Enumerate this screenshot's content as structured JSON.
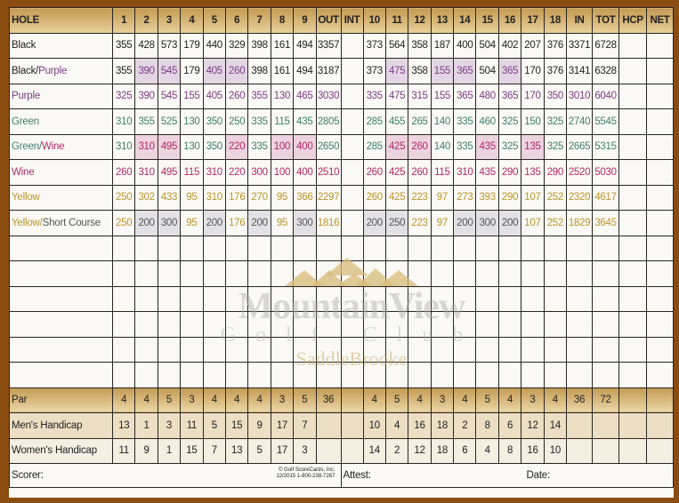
{
  "header": {
    "hole_label": "HOLE",
    "front": [
      "1",
      "2",
      "3",
      "4",
      "5",
      "6",
      "7",
      "8",
      "9"
    ],
    "out": "OUT",
    "int": "INT",
    "back": [
      "10",
      "11",
      "12",
      "13",
      "14",
      "15",
      "16",
      "17",
      "18"
    ],
    "in": "IN",
    "tot": "TOT",
    "hcp": "HCP",
    "net": "NET"
  },
  "colors": {
    "black": "#222222",
    "purple": "#7d3a86",
    "green": "#3d7f6c",
    "wine": "#b02a66",
    "yellow": "#b8952b",
    "short": "#555555",
    "hl_purple": "#e3d6e4",
    "hl_wine": "#ecd3df",
    "hl_grey": "#e2e2e6",
    "border": "#8a4c10"
  },
  "tees": [
    {
      "label_parts": [
        {
          "text": "Black",
          "color": "black"
        }
      ],
      "color": "black",
      "alt": "black",
      "hl": "",
      "alt_cols": [],
      "values": [
        "355",
        "428",
        "573",
        "179",
        "440",
        "329",
        "398",
        "161",
        "494",
        "3357",
        "373",
        "564",
        "358",
        "187",
        "400",
        "504",
        "402",
        "207",
        "376",
        "3371",
        "6728"
      ]
    },
    {
      "label_parts": [
        {
          "text": "Black/",
          "color": "black"
        },
        {
          "text": "Purple",
          "color": "purple"
        }
      ],
      "color": "black",
      "alt": "purple",
      "hl": "hl_purple",
      "alt_cols": [
        1,
        2,
        4,
        5,
        11,
        13,
        14,
        16
      ],
      "values": [
        "355",
        "390",
        "545",
        "179",
        "405",
        "260",
        "398",
        "161",
        "494",
        "3187",
        "373",
        "475",
        "358",
        "155",
        "365",
        "504",
        "365",
        "170",
        "376",
        "3141",
        "6328"
      ]
    },
    {
      "label_parts": [
        {
          "text": "Purple",
          "color": "purple"
        }
      ],
      "color": "purple",
      "alt": "purple",
      "hl": "",
      "alt_cols": [],
      "values": [
        "325",
        "390",
        "545",
        "155",
        "405",
        "260",
        "355",
        "130",
        "465",
        "3030",
        "335",
        "475",
        "315",
        "155",
        "365",
        "480",
        "365",
        "170",
        "350",
        "3010",
        "6040"
      ]
    },
    {
      "label_parts": [
        {
          "text": "Green",
          "color": "green"
        }
      ],
      "color": "green",
      "alt": "green",
      "hl": "",
      "alt_cols": [],
      "values": [
        "310",
        "355",
        "525",
        "130",
        "350",
        "250",
        "335",
        "115",
        "435",
        "2805",
        "285",
        "455",
        "265",
        "140",
        "335",
        "460",
        "325",
        "150",
        "325",
        "2740",
        "5545"
      ]
    },
    {
      "label_parts": [
        {
          "text": "Green/",
          "color": "green"
        },
        {
          "text": "Wine",
          "color": "wine"
        }
      ],
      "color": "green",
      "alt": "wine",
      "hl": "hl_wine",
      "alt_cols": [
        1,
        2,
        5,
        7,
        8,
        11,
        12,
        15,
        17
      ],
      "values": [
        "310",
        "310",
        "495",
        "130",
        "350",
        "220",
        "335",
        "100",
        "400",
        "2650",
        "285",
        "425",
        "260",
        "140",
        "335",
        "435",
        "325",
        "135",
        "325",
        "2665",
        "5315"
      ]
    },
    {
      "label_parts": [
        {
          "text": "Wine",
          "color": "wine"
        }
      ],
      "color": "wine",
      "alt": "wine",
      "hl": "",
      "alt_cols": [],
      "values": [
        "260",
        "310",
        "495",
        "115",
        "310",
        "220",
        "300",
        "100",
        "400",
        "2510",
        "260",
        "425",
        "260",
        "115",
        "310",
        "435",
        "290",
        "135",
        "290",
        "2520",
        "5030"
      ]
    },
    {
      "label_parts": [
        {
          "text": "Yellow",
          "color": "yellow"
        }
      ],
      "color": "yellow",
      "alt": "yellow",
      "hl": "",
      "alt_cols": [],
      "values": [
        "250",
        "302",
        "433",
        "95",
        "310",
        "176",
        "270",
        "95",
        "366",
        "2297",
        "260",
        "425",
        "223",
        "97",
        "273",
        "393",
        "290",
        "107",
        "252",
        "2320",
        "4617"
      ]
    },
    {
      "label_parts": [
        {
          "text": "Yellow/",
          "color": "yellow"
        },
        {
          "text": "Short Course",
          "color": "short"
        }
      ],
      "color": "yellow",
      "alt": "short",
      "hl": "hl_grey",
      "alt_cols": [
        1,
        2,
        4,
        6,
        8,
        10,
        11,
        14,
        15,
        16
      ],
      "values": [
        "250",
        "200",
        "300",
        "95",
        "200",
        "176",
        "200",
        "95",
        "300",
        "1816",
        "200",
        "250",
        "223",
        "97",
        "200",
        "300",
        "200",
        "107",
        "252",
        "1829",
        "3645"
      ]
    }
  ],
  "par": {
    "label": "Par",
    "front": [
      "4",
      "4",
      "5",
      "3",
      "4",
      "4",
      "4",
      "3",
      "5"
    ],
    "out": "36",
    "back": [
      "4",
      "5",
      "4",
      "3",
      "4",
      "5",
      "4",
      "3",
      "4"
    ],
    "in": "36",
    "tot": "72"
  },
  "mens_handicap": {
    "label": "Men's Handicap",
    "front": [
      "13",
      "1",
      "3",
      "11",
      "5",
      "15",
      "9",
      "17",
      "7"
    ],
    "back": [
      "10",
      "4",
      "16",
      "18",
      "2",
      "8",
      "6",
      "12",
      "14"
    ]
  },
  "womens_handicap": {
    "label": "Women's Handicap",
    "front": [
      "11",
      "9",
      "1",
      "15",
      "7",
      "13",
      "5",
      "17",
      "3"
    ],
    "back": [
      "14",
      "2",
      "12",
      "18",
      "6",
      "4",
      "8",
      "16",
      "10"
    ]
  },
  "footer": {
    "scorer": "Scorer:",
    "attest": "Attest:",
    "date": "Date:",
    "copyright_line1": "© Golf ScoreCards, Inc.",
    "copyright_line2": "12/2015 1-800-238-7267"
  },
  "logo": {
    "line1": "MountainView",
    "line2": "Golf Club",
    "line3": "SaddleBrooke"
  }
}
